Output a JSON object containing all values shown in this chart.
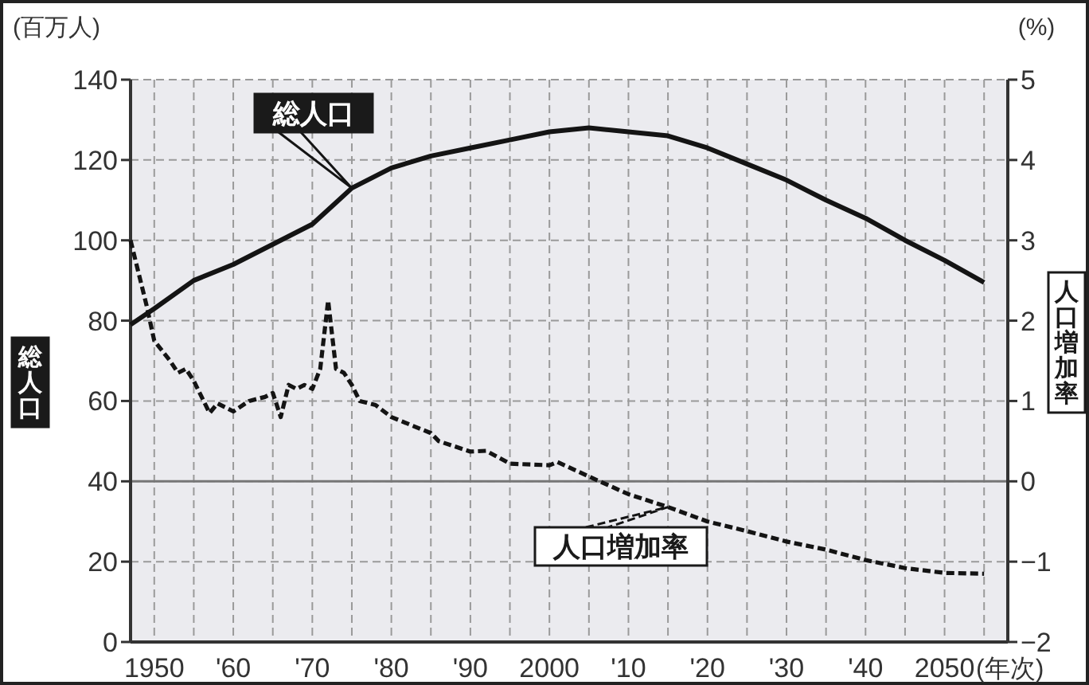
{
  "chart_data": {
    "type": "line",
    "xlabel": "(年次)",
    "ylabel": "総人口",
    "y2label": "人口増加率",
    "annotations": [
      "(百万人)",
      "(%)"
    ],
    "xlim": [
      1947,
      2058
    ],
    "xticks": [
      1950,
      {
        "value": 1955,
        "label": null
      },
      {
        "value": 1960,
        "label": "'60"
      },
      {
        "value": 1965,
        "label": null
      },
      {
        "value": 1970,
        "label": "'70"
      },
      {
        "value": 1975,
        "label": null
      },
      {
        "value": 1980,
        "label": "'80"
      },
      {
        "value": 1985,
        "label": null
      },
      {
        "value": 1990,
        "label": "'90"
      },
      {
        "value": 1995,
        "label": null
      },
      2000,
      {
        "value": 2005,
        "label": null
      },
      {
        "value": 2010,
        "label": "'10"
      },
      {
        "value": 2015,
        "label": null
      },
      {
        "value": 2020,
        "label": "'20"
      },
      {
        "value": 2025,
        "label": null
      },
      {
        "value": 2030,
        "label": "'30"
      },
      {
        "value": 2035,
        "label": null
      },
      {
        "value": 2040,
        "label": "'40"
      },
      {
        "value": 2045,
        "label": null
      },
      2050,
      {
        "value": 2055,
        "label": null
      }
    ],
    "ylim": [
      0,
      140
    ],
    "yticks": [
      0,
      20,
      40,
      60,
      80,
      100,
      120,
      140
    ],
    "y2lim": [
      -2,
      5
    ],
    "y2ticks": [
      -2,
      -1,
      0,
      1,
      2,
      3,
      4,
      5
    ],
    "grid": true,
    "ref_lines": [
      {
        "axis": "y2",
        "value": 0
      }
    ],
    "series": [
      {
        "name": "総人口",
        "color": "#141414",
        "line_style": "solid",
        "x": [
          1947,
          1950,
          1955,
          1960,
          1965,
          1970,
          1975,
          1980,
          1985,
          1990,
          1995,
          2000,
          2005,
          2010,
          2015,
          2020,
          2025,
          2030,
          2035,
          2040,
          2045,
          2050,
          2055
        ],
        "values": [
          79,
          83,
          90,
          94,
          99,
          104,
          113,
          118,
          121,
          123,
          125,
          127,
          128,
          127,
          126,
          123,
          119,
          115,
          110,
          105.5,
          100,
          95,
          89.5
        ]
      },
      {
        "name": "人口増加率",
        "color": "#141414",
        "line_style": "dashed",
        "axis": "y2",
        "x": [
          1947,
          1948,
          1949,
          1950,
          1952,
          1953,
          1954,
          1955,
          1957,
          1958,
          1960,
          1962,
          1964,
          1965,
          1966,
          1967,
          1968,
          1969,
          1970,
          1971,
          1972,
          1973,
          1974,
          1975,
          1976,
          1978,
          1980,
          1985,
          1986,
          1990,
          1992,
          1995,
          2000,
          2001,
          2005,
          2010,
          2015,
          2020,
          2025,
          2030,
          2035,
          2040,
          2045,
          2050,
          2055
        ],
        "values": [
          3.0,
          2.6,
          2.2,
          1.75,
          1.5,
          1.35,
          1.4,
          1.25,
          0.85,
          0.97,
          0.87,
          1.0,
          1.05,
          1.1,
          0.8,
          1.2,
          1.15,
          1.2,
          1.15,
          1.4,
          2.25,
          1.4,
          1.35,
          1.2,
          1.0,
          0.95,
          0.8,
          0.6,
          0.5,
          0.37,
          0.38,
          0.22,
          0.2,
          0.24,
          0.06,
          -0.16,
          -0.32,
          -0.5,
          -0.62,
          -0.75,
          -0.85,
          -0.98,
          -1.08,
          -1.14,
          -1.15
        ]
      }
    ]
  }
}
